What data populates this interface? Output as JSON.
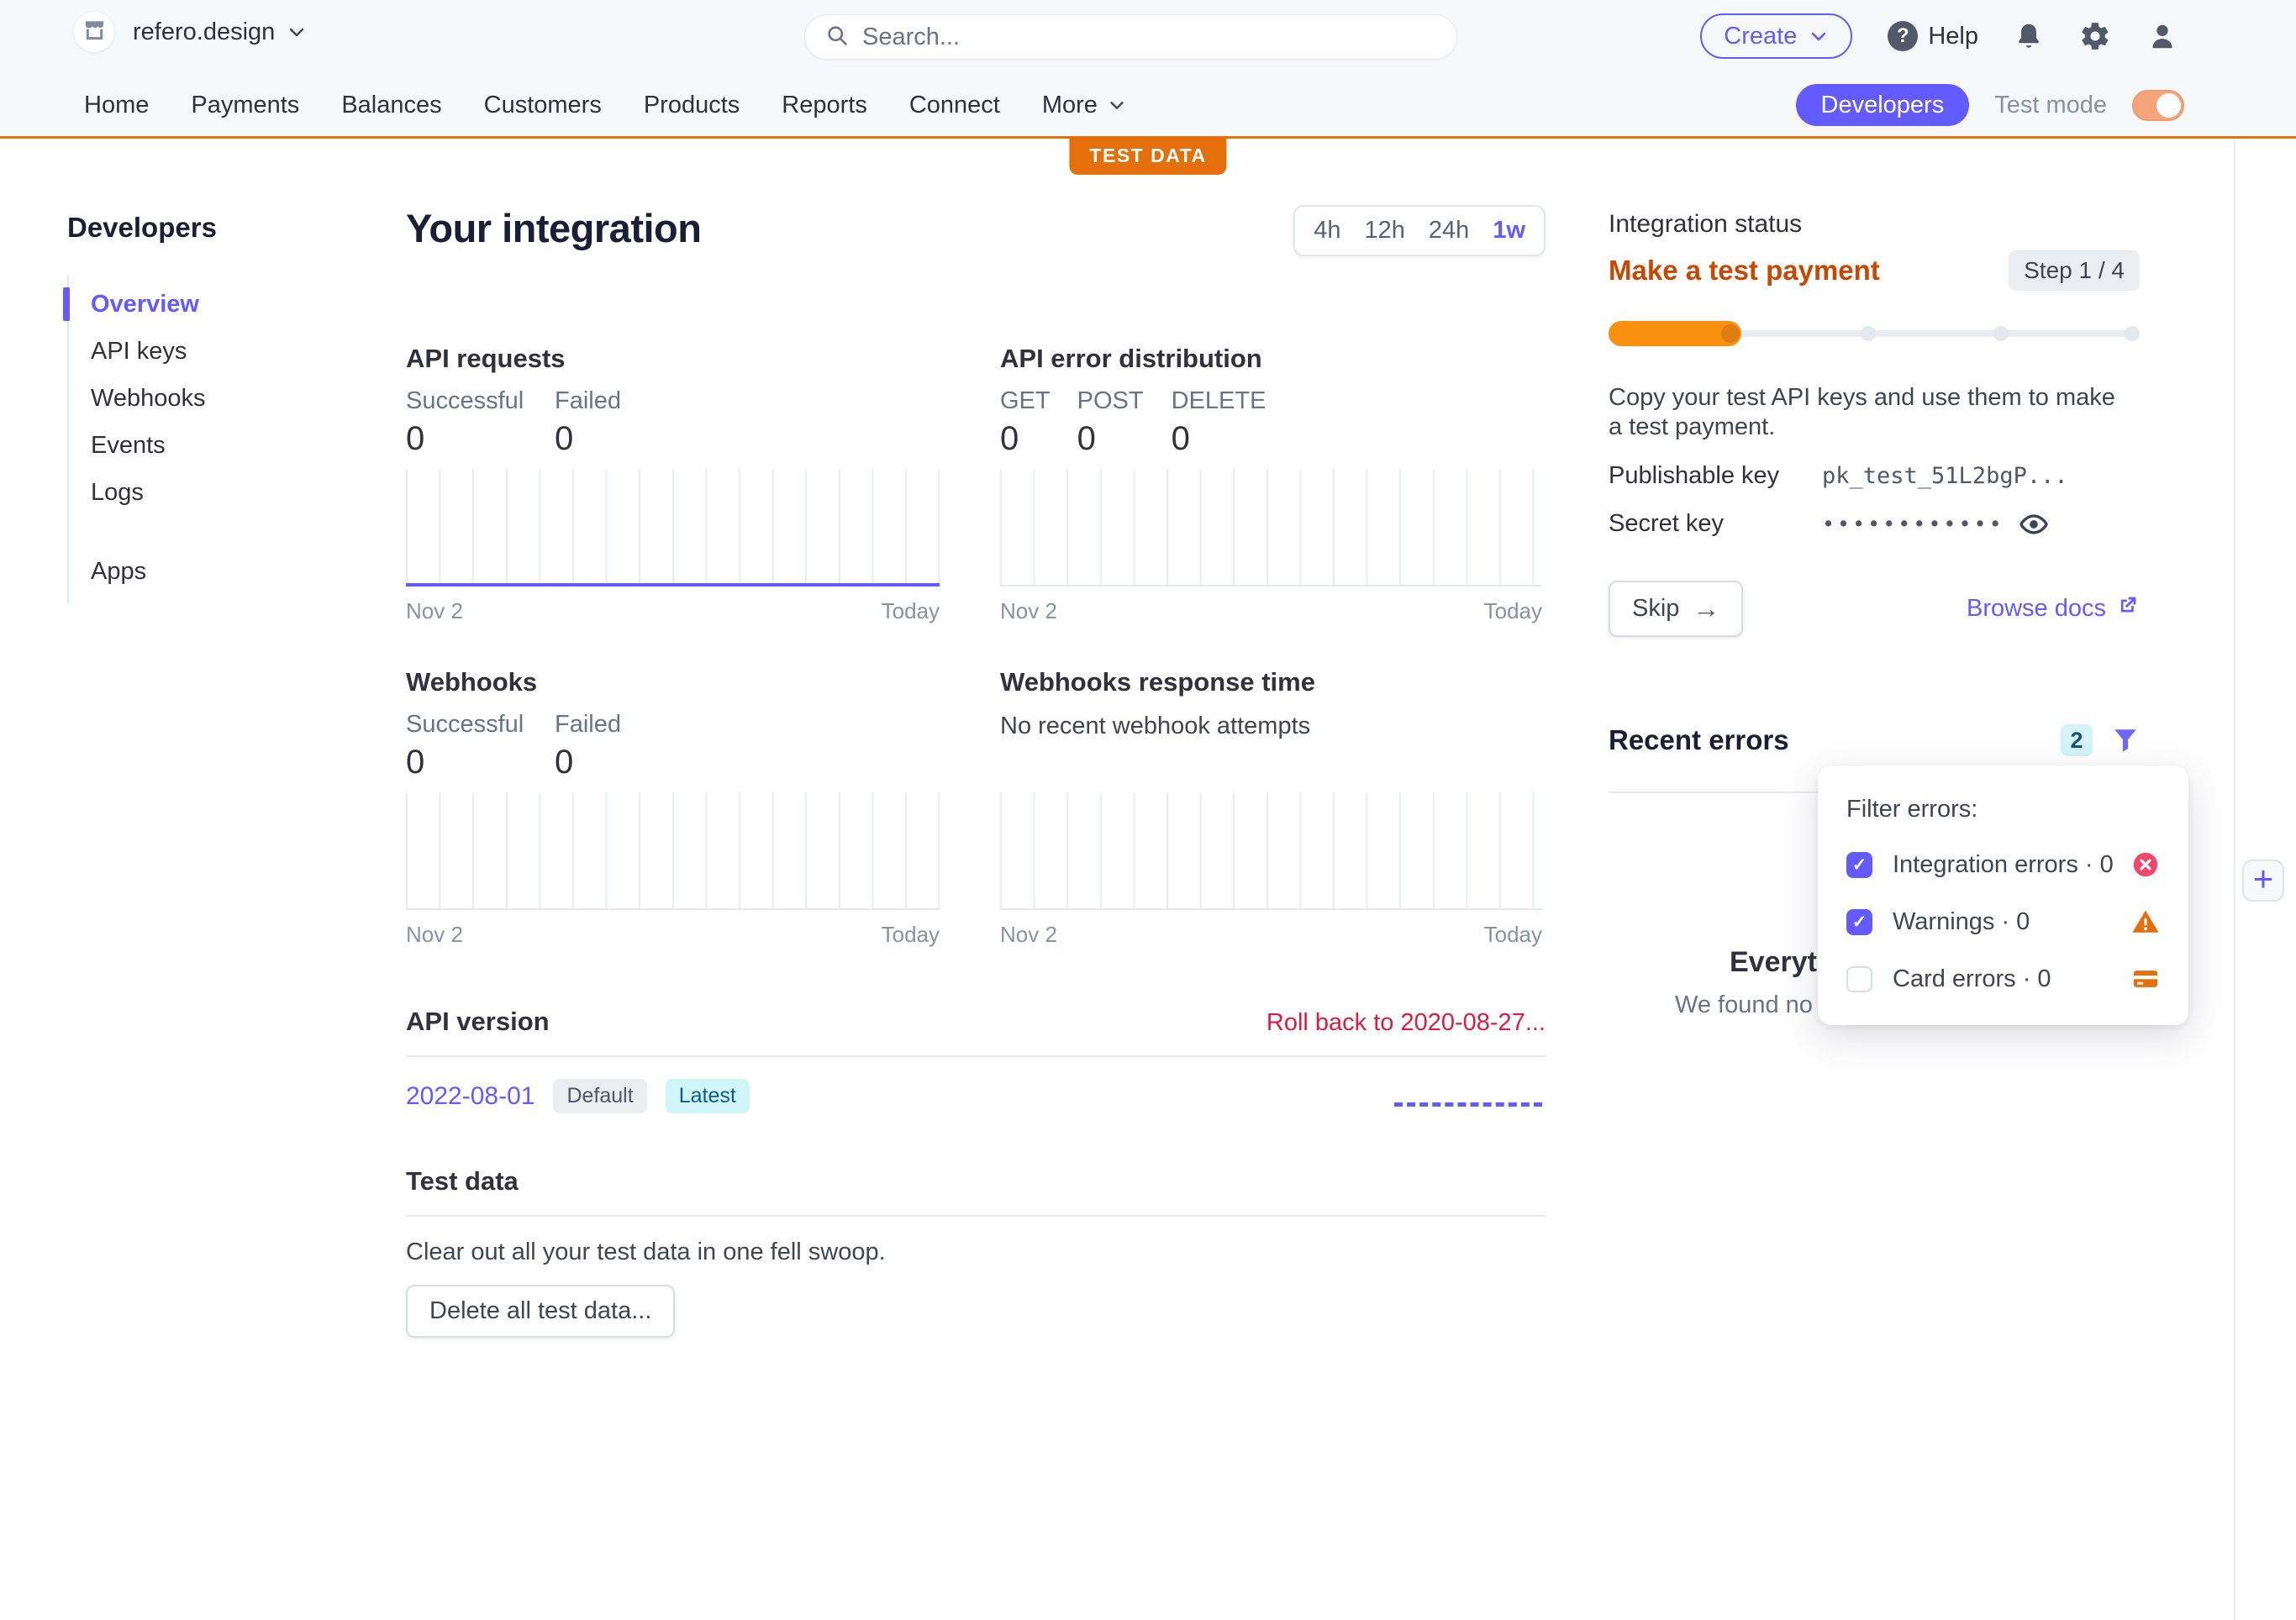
{
  "topbar": {
    "account_name": "refero.design",
    "search_placeholder": "Search...",
    "create_label": "Create",
    "help_label": "Help"
  },
  "navbar": {
    "tabs": [
      "Home",
      "Payments",
      "Balances",
      "Customers",
      "Products",
      "Reports",
      "Connect"
    ],
    "more_label": "More",
    "developers_pill": "Developers",
    "test_mode_label": "Test mode",
    "test_mode_on": true,
    "test_data_badge": "TEST DATA"
  },
  "sidebar": {
    "heading": "Developers",
    "active_item": "Overview",
    "items": [
      {
        "label": "Overview"
      },
      {
        "label": "API keys"
      },
      {
        "label": "Webhooks"
      },
      {
        "label": "Events"
      },
      {
        "label": "Logs"
      },
      {
        "label": "Apps"
      }
    ]
  },
  "main": {
    "title": "Your integration",
    "time_range": {
      "options": [
        "4h",
        "12h",
        "24h",
        "1w"
      ],
      "selected": "1w"
    },
    "api_requests": {
      "title": "API requests",
      "stats": [
        {
          "label": "Successful",
          "value": "0"
        },
        {
          "label": "Failed",
          "value": "0"
        }
      ],
      "x_start": "Nov 2",
      "x_end": "Today"
    },
    "api_error_distribution": {
      "title": "API error distribution",
      "stats": [
        {
          "label": "GET",
          "value": "0"
        },
        {
          "label": "POST",
          "value": "0"
        },
        {
          "label": "DELETE",
          "value": "0"
        }
      ],
      "x_start": "Nov 2",
      "x_end": "Today"
    },
    "webhooks": {
      "title": "Webhooks",
      "stats": [
        {
          "label": "Successful",
          "value": "0"
        },
        {
          "label": "Failed",
          "value": "0"
        }
      ],
      "x_start": "Nov 2",
      "x_end": "Today"
    },
    "webhooks_response_time": {
      "title": "Webhooks response time",
      "empty_message": "No recent webhook attempts",
      "x_start": "Nov 2",
      "x_end": "Today"
    },
    "api_version": {
      "title": "API version",
      "rollback_link": "Roll back to 2020-08-27...",
      "current_version": "2022-08-01",
      "default_badge": "Default",
      "latest_badge": "Latest"
    },
    "test_data": {
      "title": "Test data",
      "description": "Clear out all your test data in one fell swoop.",
      "delete_button": "Delete all test data..."
    }
  },
  "integration_status": {
    "heading": "Integration status",
    "current_step": "Make a test payment",
    "step_indicator": "Step 1 / 4",
    "progress_percent": 25,
    "description": "Copy your test API keys and use them to make a test payment.",
    "publishable_key_label": "Publishable key",
    "publishable_key_value": "pk_test_51L2bgP...",
    "secret_key_label": "Secret key",
    "secret_key_masked": "••••••••••••",
    "skip_button": "Skip",
    "skip_arrow": "→",
    "browse_docs_link": "Browse docs"
  },
  "recent_errors": {
    "heading": "Recent errors",
    "filter_count": "2",
    "empty_title_visible": "Everyth",
    "empty_text_visible": "We found no",
    "filter_popup": {
      "title": "Filter errors:",
      "options": [
        {
          "label": "Integration errors · 0",
          "checked": true,
          "icon": "error-circle-icon"
        },
        {
          "label": "Warnings · 0",
          "checked": true,
          "icon": "warning-triangle-icon"
        },
        {
          "label": "Card errors · 0",
          "checked": false,
          "icon": "card-icon"
        }
      ]
    }
  },
  "colors": {
    "accent_purple": "#635bff",
    "test_orange": "#e56f0b",
    "step_title_orange": "#c84801",
    "progress_orange": "#fb8f0e",
    "danger_red": "#df1b41",
    "error_pink": "#f2476a",
    "cyan_badge_bg": "#d3f3f6",
    "cyan_badge_text": "#19527a",
    "topbar_bg": "#f6f8fa"
  }
}
